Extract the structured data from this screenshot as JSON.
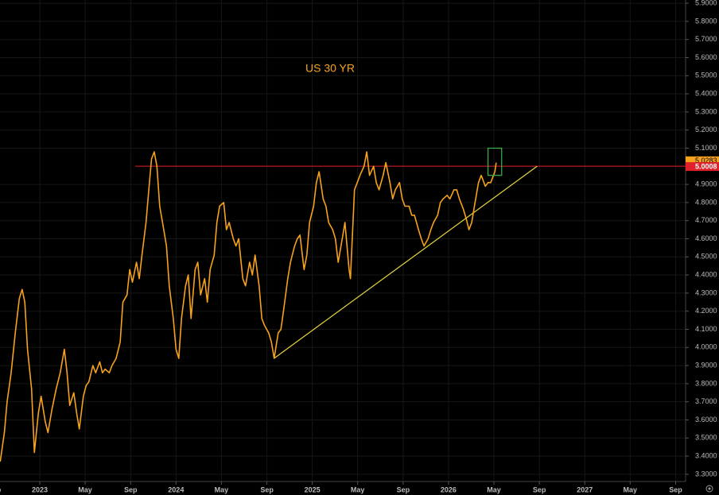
{
  "chart_data": {
    "type": "line",
    "title": "US 30 YR",
    "color": "#f7a21b",
    "grid": true,
    "x": [
      2022.71,
      2022.74,
      2022.76,
      2022.79,
      2022.82,
      2022.85,
      2022.87,
      2022.89,
      2022.91,
      2022.94,
      2022.96,
      2022.99,
      2023.01,
      2023.04,
      2023.06,
      2023.09,
      2023.12,
      2023.15,
      2023.18,
      2023.2,
      2023.22,
      2023.25,
      2023.27,
      2023.29,
      2023.32,
      2023.34,
      2023.36,
      2023.39,
      2023.41,
      2023.44,
      2023.46,
      2023.48,
      2023.51,
      2023.53,
      2023.56,
      2023.59,
      2023.61,
      2023.64,
      2023.66,
      2023.68,
      2023.71,
      2023.73,
      2023.75,
      2023.78,
      2023.8,
      2023.82,
      2023.84,
      2023.86,
      2023.88,
      2023.91,
      2023.93,
      2023.95,
      2023.98,
      2024.0,
      2024.02,
      2024.04,
      2024.07,
      2024.09,
      2024.11,
      2024.14,
      2024.16,
      2024.18,
      2024.21,
      2024.23,
      2024.25,
      2024.28,
      2024.3,
      2024.32,
      2024.35,
      2024.37,
      2024.39,
      2024.42,
      2024.44,
      2024.46,
      2024.49,
      2024.51,
      2024.54,
      2024.56,
      2024.58,
      2024.61,
      2024.63,
      2024.65,
      2024.68,
      2024.7,
      2024.72,
      2024.75,
      2024.77,
      2024.79,
      2024.82,
      2024.84,
      2024.87,
      2024.89,
      2024.91,
      2024.94,
      2024.96,
      2024.98,
      2025.01,
      2025.03,
      2025.05,
      2025.08,
      2025.1,
      2025.12,
      2025.15,
      2025.17,
      2025.19,
      2025.22,
      2025.24,
      2025.27,
      2025.28,
      2025.31,
      2025.33,
      2025.35,
      2025.38,
      2025.4,
      2025.42,
      2025.45,
      2025.47,
      2025.49,
      2025.52,
      2025.54,
      2025.57,
      2025.59,
      2025.61,
      2025.64,
      2025.66,
      2025.68,
      2025.71,
      2025.73,
      2025.75,
      2025.78,
      2025.8,
      2025.82,
      2025.85,
      2025.87,
      2025.89,
      2025.92,
      2025.94,
      2025.96,
      2025.99,
      2026.01,
      2026.04,
      2026.06,
      2026.08,
      2026.11,
      2026.13,
      2026.15,
      2026.17,
      2026.19,
      2026.22,
      2026.24,
      2026.27,
      2026.29,
      2026.31,
      2026.34,
      2026.35
    ],
    "values": [
      3.37,
      3.53,
      3.7,
      3.86,
      4.08,
      4.27,
      4.32,
      4.25,
      3.99,
      3.77,
      3.42,
      3.64,
      3.73,
      3.59,
      3.53,
      3.66,
      3.77,
      3.86,
      3.99,
      3.86,
      3.68,
      3.75,
      3.64,
      3.55,
      3.73,
      3.79,
      3.81,
      3.9,
      3.86,
      3.92,
      3.86,
      3.88,
      3.86,
      3.9,
      3.94,
      4.03,
      4.25,
      4.29,
      4.43,
      4.36,
      4.47,
      4.38,
      4.51,
      4.69,
      4.87,
      5.04,
      5.08,
      5.0,
      4.78,
      4.65,
      4.56,
      4.34,
      4.16,
      3.99,
      3.94,
      4.16,
      4.34,
      4.4,
      4.16,
      4.43,
      4.47,
      4.29,
      4.38,
      4.25,
      4.43,
      4.51,
      4.69,
      4.78,
      4.8,
      4.65,
      4.69,
      4.6,
      4.56,
      4.6,
      4.38,
      4.34,
      4.47,
      4.4,
      4.51,
      4.34,
      4.16,
      4.12,
      4.08,
      4.03,
      3.94,
      4.08,
      4.1,
      4.21,
      4.38,
      4.47,
      4.56,
      4.6,
      4.62,
      4.43,
      4.51,
      4.69,
      4.78,
      4.91,
      4.97,
      4.82,
      4.78,
      4.69,
      4.65,
      4.6,
      4.47,
      4.6,
      4.69,
      4.43,
      4.38,
      4.87,
      4.91,
      4.95,
      5.0,
      5.08,
      4.95,
      5.0,
      4.91,
      4.87,
      4.95,
      5.02,
      4.91,
      4.82,
      4.87,
      4.91,
      4.82,
      4.78,
      4.78,
      4.73,
      4.73,
      4.65,
      4.6,
      4.56,
      4.6,
      4.65,
      4.69,
      4.73,
      4.8,
      4.82,
      4.84,
      4.82,
      4.87,
      4.87,
      4.82,
      4.76,
      4.71,
      4.65,
      4.69,
      4.78,
      4.91,
      4.95,
      4.89,
      4.91,
      4.91,
      4.97,
      5.02
    ],
    "xlim": [
      2022.708,
      2027.74
    ],
    "ylim": [
      3.26,
      5.918
    ],
    "xticks": [
      {
        "value": 2022.667,
        "label": "Sep"
      },
      2023,
      {
        "value": 2023.333,
        "label": "May"
      },
      {
        "value": 2023.667,
        "label": "Sep"
      },
      2024,
      {
        "value": 2024.333,
        "label": "May"
      },
      {
        "value": 2024.667,
        "label": "Sep"
      },
      2025,
      {
        "value": 2025.333,
        "label": "May"
      },
      {
        "value": 2025.667,
        "label": "Sep"
      },
      2026,
      {
        "value": 2026.333,
        "label": "May"
      },
      {
        "value": 2026.667,
        "label": "Sep"
      },
      2027,
      {
        "value": 2027.333,
        "label": "May"
      },
      {
        "value": 2027.667,
        "label": "Sep"
      }
    ],
    "yticks": [
      {
        "value": 5.9,
        "label": "5.9000"
      },
      {
        "value": 5.8,
        "label": "5.8000"
      },
      {
        "value": 5.7,
        "label": "5.7000"
      },
      {
        "value": 5.6,
        "label": "5.6000"
      },
      {
        "value": 5.5,
        "label": "5.5000"
      },
      {
        "value": 5.4,
        "label": "5.4000"
      },
      {
        "value": 5.3,
        "label": "5.3000"
      },
      {
        "value": 5.2,
        "label": "5.2000"
      },
      {
        "value": 5.1,
        "label": "5.1000"
      },
      {
        "value": 4.9,
        "label": "4.9000"
      },
      {
        "value": 4.8,
        "label": "4.8000"
      },
      {
        "value": 4.7,
        "label": "4.7000"
      },
      {
        "value": 4.6,
        "label": "4.6000"
      },
      {
        "value": 4.5,
        "label": "4.5000"
      },
      {
        "value": 4.4,
        "label": "4.4000"
      },
      {
        "value": 4.3,
        "label": "4.3000"
      },
      {
        "value": 4.2,
        "label": "4.2000"
      },
      {
        "value": 4.1,
        "label": "4.1000"
      },
      {
        "value": 4.0,
        "label": "4.0000"
      },
      {
        "value": 3.9,
        "label": "3.9000"
      },
      {
        "value": 3.8,
        "label": "3.8000"
      },
      {
        "value": 3.7,
        "label": "3.7000"
      },
      {
        "value": 3.6,
        "label": "3.6000"
      },
      {
        "value": 3.5,
        "label": "3.5000"
      },
      {
        "value": 3.4,
        "label": "3.4000"
      },
      {
        "value": 3.3,
        "label": "3.3000"
      }
    ],
    "level": 5.0008,
    "level_color": "#e0202a",
    "level_start": 2023.7,
    "last_value": 5.0283,
    "trendline": {
      "x": [
        2024.72,
        2026.65
      ],
      "values": [
        3.94,
        5.0
      ],
      "color": "#e8d43a"
    },
    "highlight": {
      "x": [
        2026.29,
        2026.39
      ],
      "values": [
        4.95,
        5.1
      ],
      "color": "#3cb54a"
    }
  }
}
